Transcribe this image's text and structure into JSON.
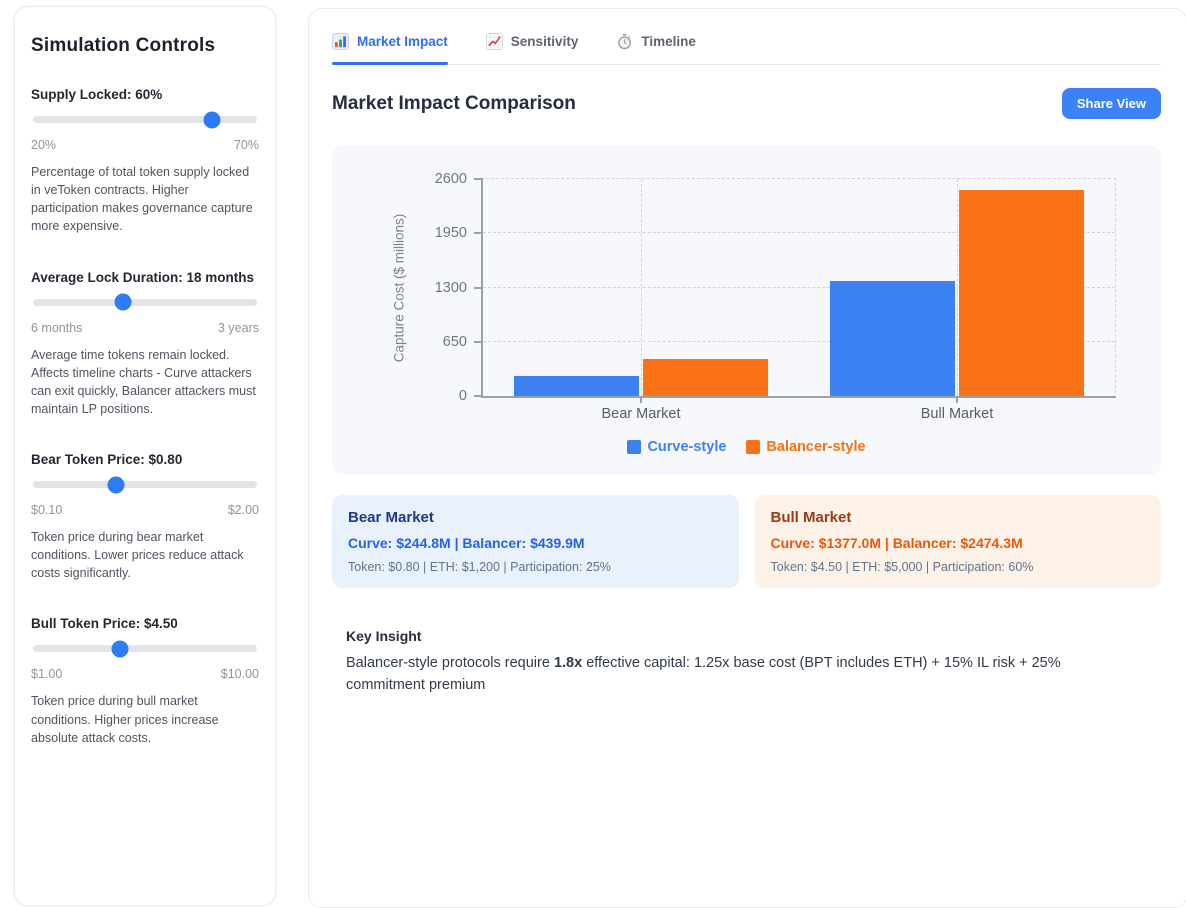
{
  "sidebar": {
    "title": "Simulation Controls",
    "sliders": [
      {
        "label": "Supply Locked: 60%",
        "min": "20%",
        "max": "70%",
        "percent": 80,
        "description": "Percentage of total token supply locked in veToken contracts. Higher participation makes governance capture more expensive."
      },
      {
        "label": "Average Lock Duration: 18 months",
        "min": "6 months",
        "max": "3 years",
        "percent": 40,
        "description": "Average time tokens remain locked. Affects timeline charts - Curve attackers can exit quickly, Balancer attackers must maintain LP positions."
      },
      {
        "label": "Bear Token Price: $0.80",
        "min": "$0.10",
        "max": "$2.00",
        "percent": 37,
        "description": "Token price during bear market conditions. Lower prices reduce attack costs significantly."
      },
      {
        "label": "Bull Token Price: $4.50",
        "min": "$1.00",
        "max": "$10.00",
        "percent": 39,
        "description": "Token price during bull market conditions. Higher prices increase absolute attack costs."
      }
    ]
  },
  "tabs": [
    {
      "label": "Market Impact",
      "icon": "bar-chart-icon",
      "active": true
    },
    {
      "label": "Sensitivity",
      "icon": "line-chart-icon",
      "active": false
    },
    {
      "label": "Timeline",
      "icon": "stopwatch-icon",
      "active": false
    }
  ],
  "header": {
    "title": "Market Impact Comparison",
    "share_button": "Share View"
  },
  "chart_data": {
    "type": "bar",
    "categories": [
      "Bear Market",
      "Bull Market"
    ],
    "series": [
      {
        "name": "Curve-style",
        "color": "#3d82f2",
        "values": [
          244.8,
          1377.0
        ]
      },
      {
        "name": "Balancer-style",
        "color": "#f97316",
        "values": [
          439.9,
          2474.3
        ]
      }
    ],
    "title": "",
    "xlabel": "",
    "ylabel": "Capture Cost ($ millions)",
    "yticks": [
      0,
      650,
      1300,
      1950,
      2600
    ],
    "ylim": [
      0,
      2600
    ],
    "grid": true,
    "legend_position": "bottom"
  },
  "scenario_cards": [
    {
      "title": "Bear Market",
      "values": "Curve: $244.8M | Balancer: $439.9M",
      "details": "Token: $0.80 | ETH: $1,200 | Participation: 25%"
    },
    {
      "title": "Bull Market",
      "values": "Curve: $1377.0M | Balancer: $2474.3M",
      "details": "Token: $4.50 | ETH: $5,000 | Participation: 60%"
    }
  ],
  "key_insight": {
    "title": "Key Insight",
    "text_before": "Balancer-style protocols require ",
    "highlight": "1.8x",
    "text_after": " effective capital: 1.25x base cost (BPT includes ETH) + 15% IL risk + 25% commitment premium"
  },
  "colors": {
    "accent_blue": "#2f6ef6",
    "curve_series": "#3d82f2",
    "balancer_series": "#f97316",
    "bear_card_bg": "#e8f1fc",
    "bull_card_bg": "#fdf2e7"
  }
}
